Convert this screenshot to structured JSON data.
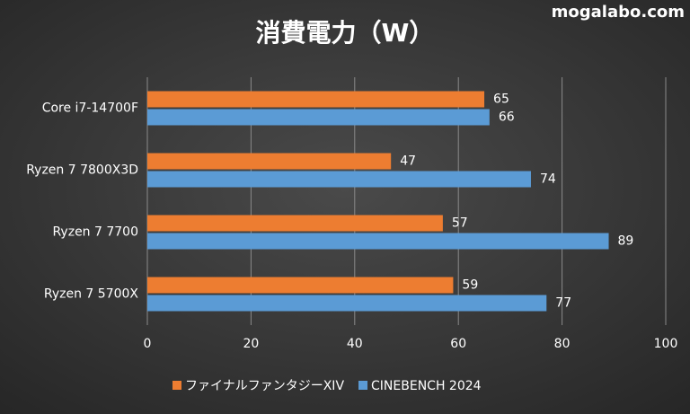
{
  "chart_data": {
    "type": "hbar",
    "title": "消費電力（W）",
    "watermark": "mogalabo.com",
    "categories": [
      "Core i7-14700F",
      "Ryzen 7 7800X3D",
      "Ryzen 7 7700",
      "Ryzen 7 5700X"
    ],
    "series": [
      {
        "name": "ファイナルファンタジーXIV",
        "color": "#ed7d31",
        "values": [
          65,
          47,
          57,
          59
        ]
      },
      {
        "name": "CINEBENCH 2024",
        "color": "#5b9bd5",
        "values": [
          66,
          74,
          89,
          77
        ]
      }
    ],
    "xlim": [
      0,
      100
    ],
    "xticks": [
      0,
      20,
      40,
      60,
      80,
      100
    ],
    "grid": true
  }
}
